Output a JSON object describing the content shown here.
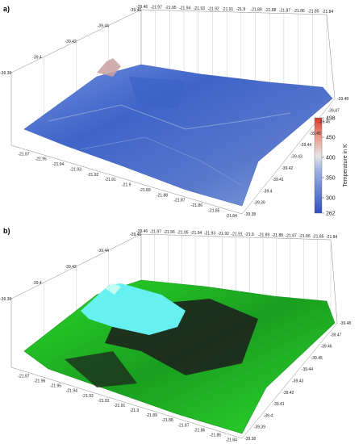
{
  "panels": [
    {
      "label": "a)",
      "x_ticks": [
        "-21.97",
        "-21.95",
        "-21.94",
        "-21.93",
        "-21.92",
        "-21.91",
        "-21.9",
        "-21.89",
        "-21.88",
        "-21.87",
        "-21.86",
        "-21.85",
        "-21.84"
      ],
      "y_ticks": [
        "-39.48",
        "-39.47",
        "-39.46",
        "-39.45",
        "-39.44",
        "-39.43",
        "-39.42",
        "-39.41",
        "-39.4",
        "-39.39",
        "-39.38"
      ],
      "top_x_ticks": [
        "-39.46",
        "-21.97",
        "-21.95",
        "-21.94",
        "-21.93",
        "-21.92",
        "-21.91",
        "-21.9",
        "-21.89",
        "-21.88",
        "-21.87",
        "-21.86",
        "-21.85",
        "-21.84"
      ],
      "left_y_ticks": [
        "-39.46",
        "-39.44",
        "-39.42",
        "-39.4",
        "-39.38"
      ]
    },
    {
      "label": "b)",
      "x_ticks": [
        "-21.97",
        "-21.96",
        "-21.95",
        "-21.94",
        "-21.93",
        "-21.92",
        "-21.91",
        "-21.9",
        "-21.89",
        "-21.88",
        "-21.87",
        "-21.86",
        "-21.85",
        "-21.84"
      ],
      "y_ticks": [
        "-39.48",
        "-39.47",
        "-39.46",
        "-39.45",
        "-39.44",
        "-39.43",
        "-39.42",
        "-39.41",
        "-39.4",
        "-39.39",
        "-39.38"
      ],
      "top_x_ticks": [
        "-39.46",
        "-21.97",
        "-21.96",
        "-21.95",
        "-21.94",
        "-21.93",
        "-21.92",
        "-21.91",
        "-21.9",
        "-21.89",
        "-21.88",
        "-21.87",
        "-21.86",
        "-21.85",
        "-21.84"
      ],
      "left_y_ticks": [
        "-39.46",
        "-39.44",
        "-39.42",
        "-39.4",
        "-39.38"
      ]
    }
  ],
  "colorbar": {
    "title": "Temperature in K",
    "ticks": [
      "498",
      "450",
      "400",
      "350",
      "300",
      "262"
    ],
    "min": 262,
    "max": 498,
    "colors": {
      "low": "#2f4fbf",
      "mid": "#e6e6e6",
      "high": "#d93a2b"
    }
  },
  "colors": {
    "temp_surface": "#5a7fd6",
    "temp_cool": "#3b62c8",
    "temp_warm": "#c9a0a0",
    "veg_green": "#21d62a",
    "snow_cyan": "#66f0f0",
    "dark_rock": "#1c1c1c",
    "axis": "#777777"
  }
}
